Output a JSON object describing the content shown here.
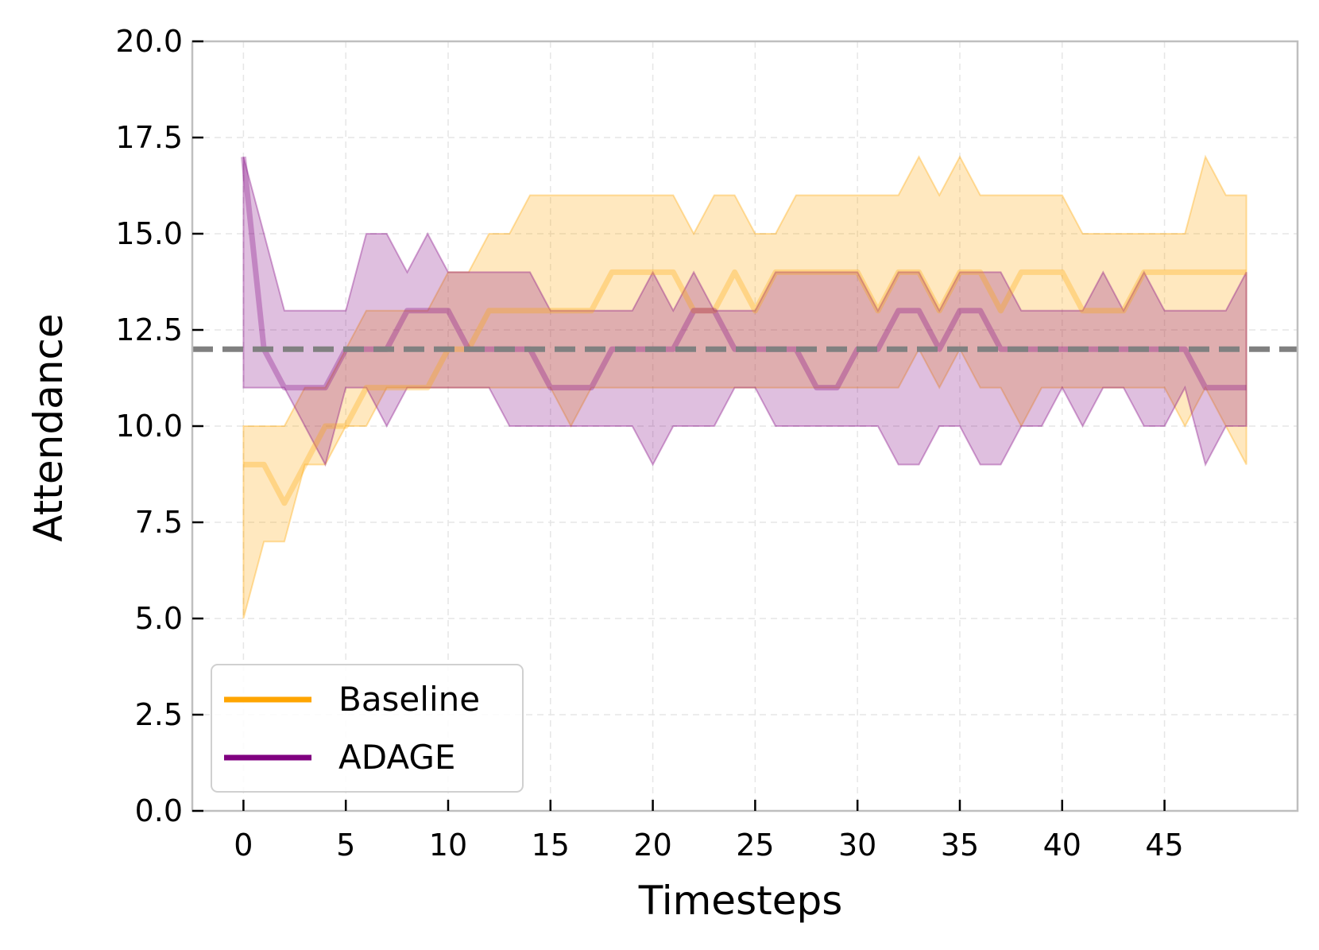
{
  "chart_data": {
    "type": "area",
    "title": "",
    "xlabel": "Timesteps",
    "ylabel": "Attendance",
    "xlim": [
      -2.5,
      51.5
    ],
    "ylim": [
      0,
      20
    ],
    "xticks": [
      0,
      5,
      10,
      15,
      20,
      25,
      30,
      35,
      40,
      45
    ],
    "xtick_labels": [
      "0",
      "5",
      "10",
      "15",
      "20",
      "25",
      "30",
      "35",
      "40",
      "45"
    ],
    "yticks": [
      0,
      2.5,
      5,
      7.5,
      10,
      12.5,
      15,
      17.5,
      20
    ],
    "ytick_labels": [
      "0.0",
      "2.5",
      "5.0",
      "7.5",
      "10.0",
      "12.5",
      "15.0",
      "17.5",
      "20.0"
    ],
    "grid": true,
    "legend_location": "lower-left",
    "reference_line": {
      "y": 12,
      "style": "dashed",
      "color": "#808080"
    },
    "x": [
      0,
      1,
      2,
      3,
      4,
      5,
      6,
      7,
      8,
      9,
      10,
      11,
      12,
      13,
      14,
      15,
      16,
      17,
      18,
      19,
      20,
      21,
      22,
      23,
      24,
      25,
      26,
      27,
      28,
      29,
      30,
      31,
      32,
      33,
      34,
      35,
      36,
      37,
      38,
      39,
      40,
      41,
      42,
      43,
      44,
      45,
      46,
      47,
      48,
      49
    ],
    "series": [
      {
        "name": "Baseline",
        "color": "#FFA500",
        "center": [
          9,
          9,
          8,
          9,
          10,
          10,
          11,
          11,
          11,
          11,
          12,
          12,
          13,
          13,
          13,
          13,
          13,
          13,
          14,
          14,
          14,
          14,
          13,
          13,
          14,
          13,
          14,
          14,
          14,
          14,
          14,
          13,
          14,
          14,
          13,
          14,
          14,
          13,
          14,
          14,
          14,
          13,
          13,
          13,
          14,
          14,
          14,
          14,
          14,
          14
        ],
        "lower": [
          5,
          7,
          7,
          9,
          9,
          10,
          10,
          11,
          11,
          11,
          11,
          11,
          11,
          11,
          11,
          11,
          10,
          11,
          11,
          11,
          11,
          11,
          11,
          11,
          11,
          11,
          11,
          11,
          11,
          11,
          11,
          11,
          11,
          12,
          11,
          12,
          11,
          11,
          10,
          11,
          11,
          11,
          11,
          11,
          11,
          11,
          10,
          11,
          10,
          9
        ],
        "upper": [
          10,
          10,
          10,
          11,
          11,
          12,
          13,
          13,
          13,
          13,
          14,
          14,
          15,
          15,
          16,
          16,
          16,
          16,
          16,
          16,
          16,
          16,
          15,
          16,
          16,
          15,
          15,
          16,
          16,
          16,
          16,
          16,
          16,
          17,
          16,
          17,
          16,
          16,
          16,
          16,
          16,
          15,
          15,
          15,
          15,
          15,
          15,
          17,
          16,
          16
        ]
      },
      {
        "name": "ADAGE",
        "color": "#800080",
        "center": [
          17,
          12,
          11,
          11,
          11,
          12,
          12,
          12,
          13,
          13,
          13,
          12,
          12,
          12,
          12,
          11,
          11,
          11,
          12,
          12,
          12,
          12,
          13,
          13,
          12,
          12,
          12,
          12,
          11,
          11,
          12,
          12,
          13,
          13,
          12,
          13,
          13,
          12,
          12,
          12,
          12,
          12,
          12,
          12,
          12,
          12,
          12,
          11,
          11,
          11
        ],
        "lower": [
          11,
          11,
          11,
          10,
          9,
          11,
          11,
          10,
          11,
          11,
          11,
          11,
          11,
          10,
          10,
          10,
          10,
          10,
          10,
          10,
          9,
          10,
          10,
          10,
          11,
          11,
          10,
          10,
          10,
          10,
          10,
          10,
          9,
          9,
          10,
          10,
          9,
          9,
          10,
          10,
          11,
          10,
          11,
          11,
          10,
          10,
          11,
          9,
          10,
          10
        ],
        "upper": [
          17,
          15,
          13,
          13,
          13,
          13,
          15,
          15,
          14,
          15,
          14,
          14,
          14,
          14,
          14,
          13,
          13,
          13,
          13,
          13,
          14,
          13,
          14,
          13,
          13,
          13,
          14,
          14,
          14,
          14,
          14,
          13,
          14,
          14,
          13,
          14,
          14,
          14,
          13,
          13,
          13,
          13,
          14,
          13,
          14,
          13,
          13,
          13,
          13,
          14
        ]
      }
    ]
  }
}
